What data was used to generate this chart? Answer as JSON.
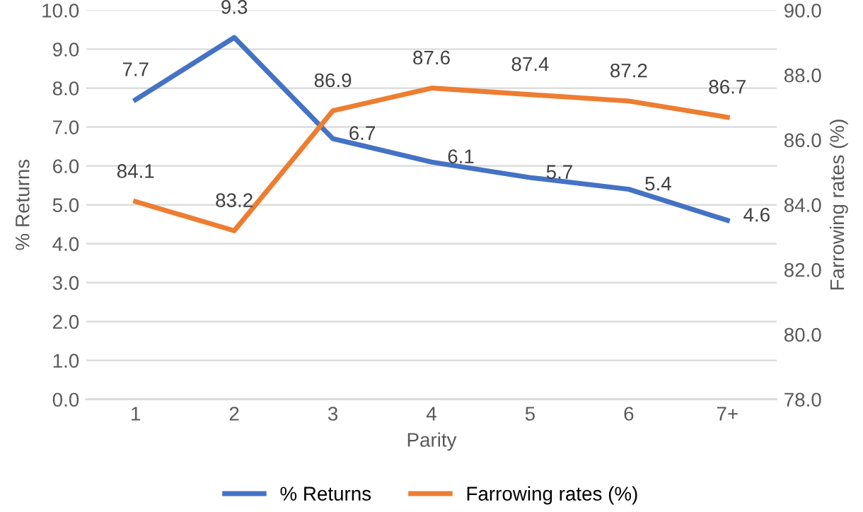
{
  "chart_data": {
    "type": "line",
    "xlabel": "Parity",
    "ylabel": "% Returns",
    "y2label": "Farrowing rates (%)",
    "categories": [
      "1",
      "2",
      "3",
      "4",
      "5",
      "6",
      "7+"
    ],
    "series": [
      {
        "name": "% Returns",
        "color": "#4472c4",
        "values": [
          7.7,
          9.3,
          6.7,
          6.1,
          5.7,
          5.4,
          4.6
        ]
      },
      {
        "name": "Farrowing rates (%)",
        "color": "#ed7d31",
        "axis": "y2",
        "values": [
          84.1,
          83.2,
          86.9,
          87.6,
          87.4,
          87.2,
          86.7
        ]
      }
    ],
    "ylim": [
      0,
      10
    ],
    "yticks": [
      {
        "value": 0,
        "label": "0.0"
      },
      {
        "value": 1,
        "label": "1.0"
      },
      {
        "value": 2,
        "label": "2.0"
      },
      {
        "value": 3,
        "label": "3.0"
      },
      {
        "value": 4,
        "label": "4.0"
      },
      {
        "value": 5,
        "label": "5.0"
      },
      {
        "value": 6,
        "label": "6.0"
      },
      {
        "value": 7,
        "label": "7.0"
      },
      {
        "value": 8,
        "label": "8.0"
      },
      {
        "value": 9,
        "label": "9.0"
      },
      {
        "value": 10,
        "label": "10.0"
      }
    ],
    "y2lim": [
      78,
      90
    ],
    "y2ticks": [
      {
        "value": 78,
        "label": "78.0"
      },
      {
        "value": 80,
        "label": "80.0"
      },
      {
        "value": 82,
        "label": "82.0"
      },
      {
        "value": 84,
        "label": "84.0"
      },
      {
        "value": 86,
        "label": "86.0"
      },
      {
        "value": 88,
        "label": "88.0"
      },
      {
        "value": 90,
        "label": "90.0"
      }
    ],
    "grid": "y",
    "legend": "bottom",
    "marker": "none",
    "line_style": "solid",
    "data_labels": true
  }
}
